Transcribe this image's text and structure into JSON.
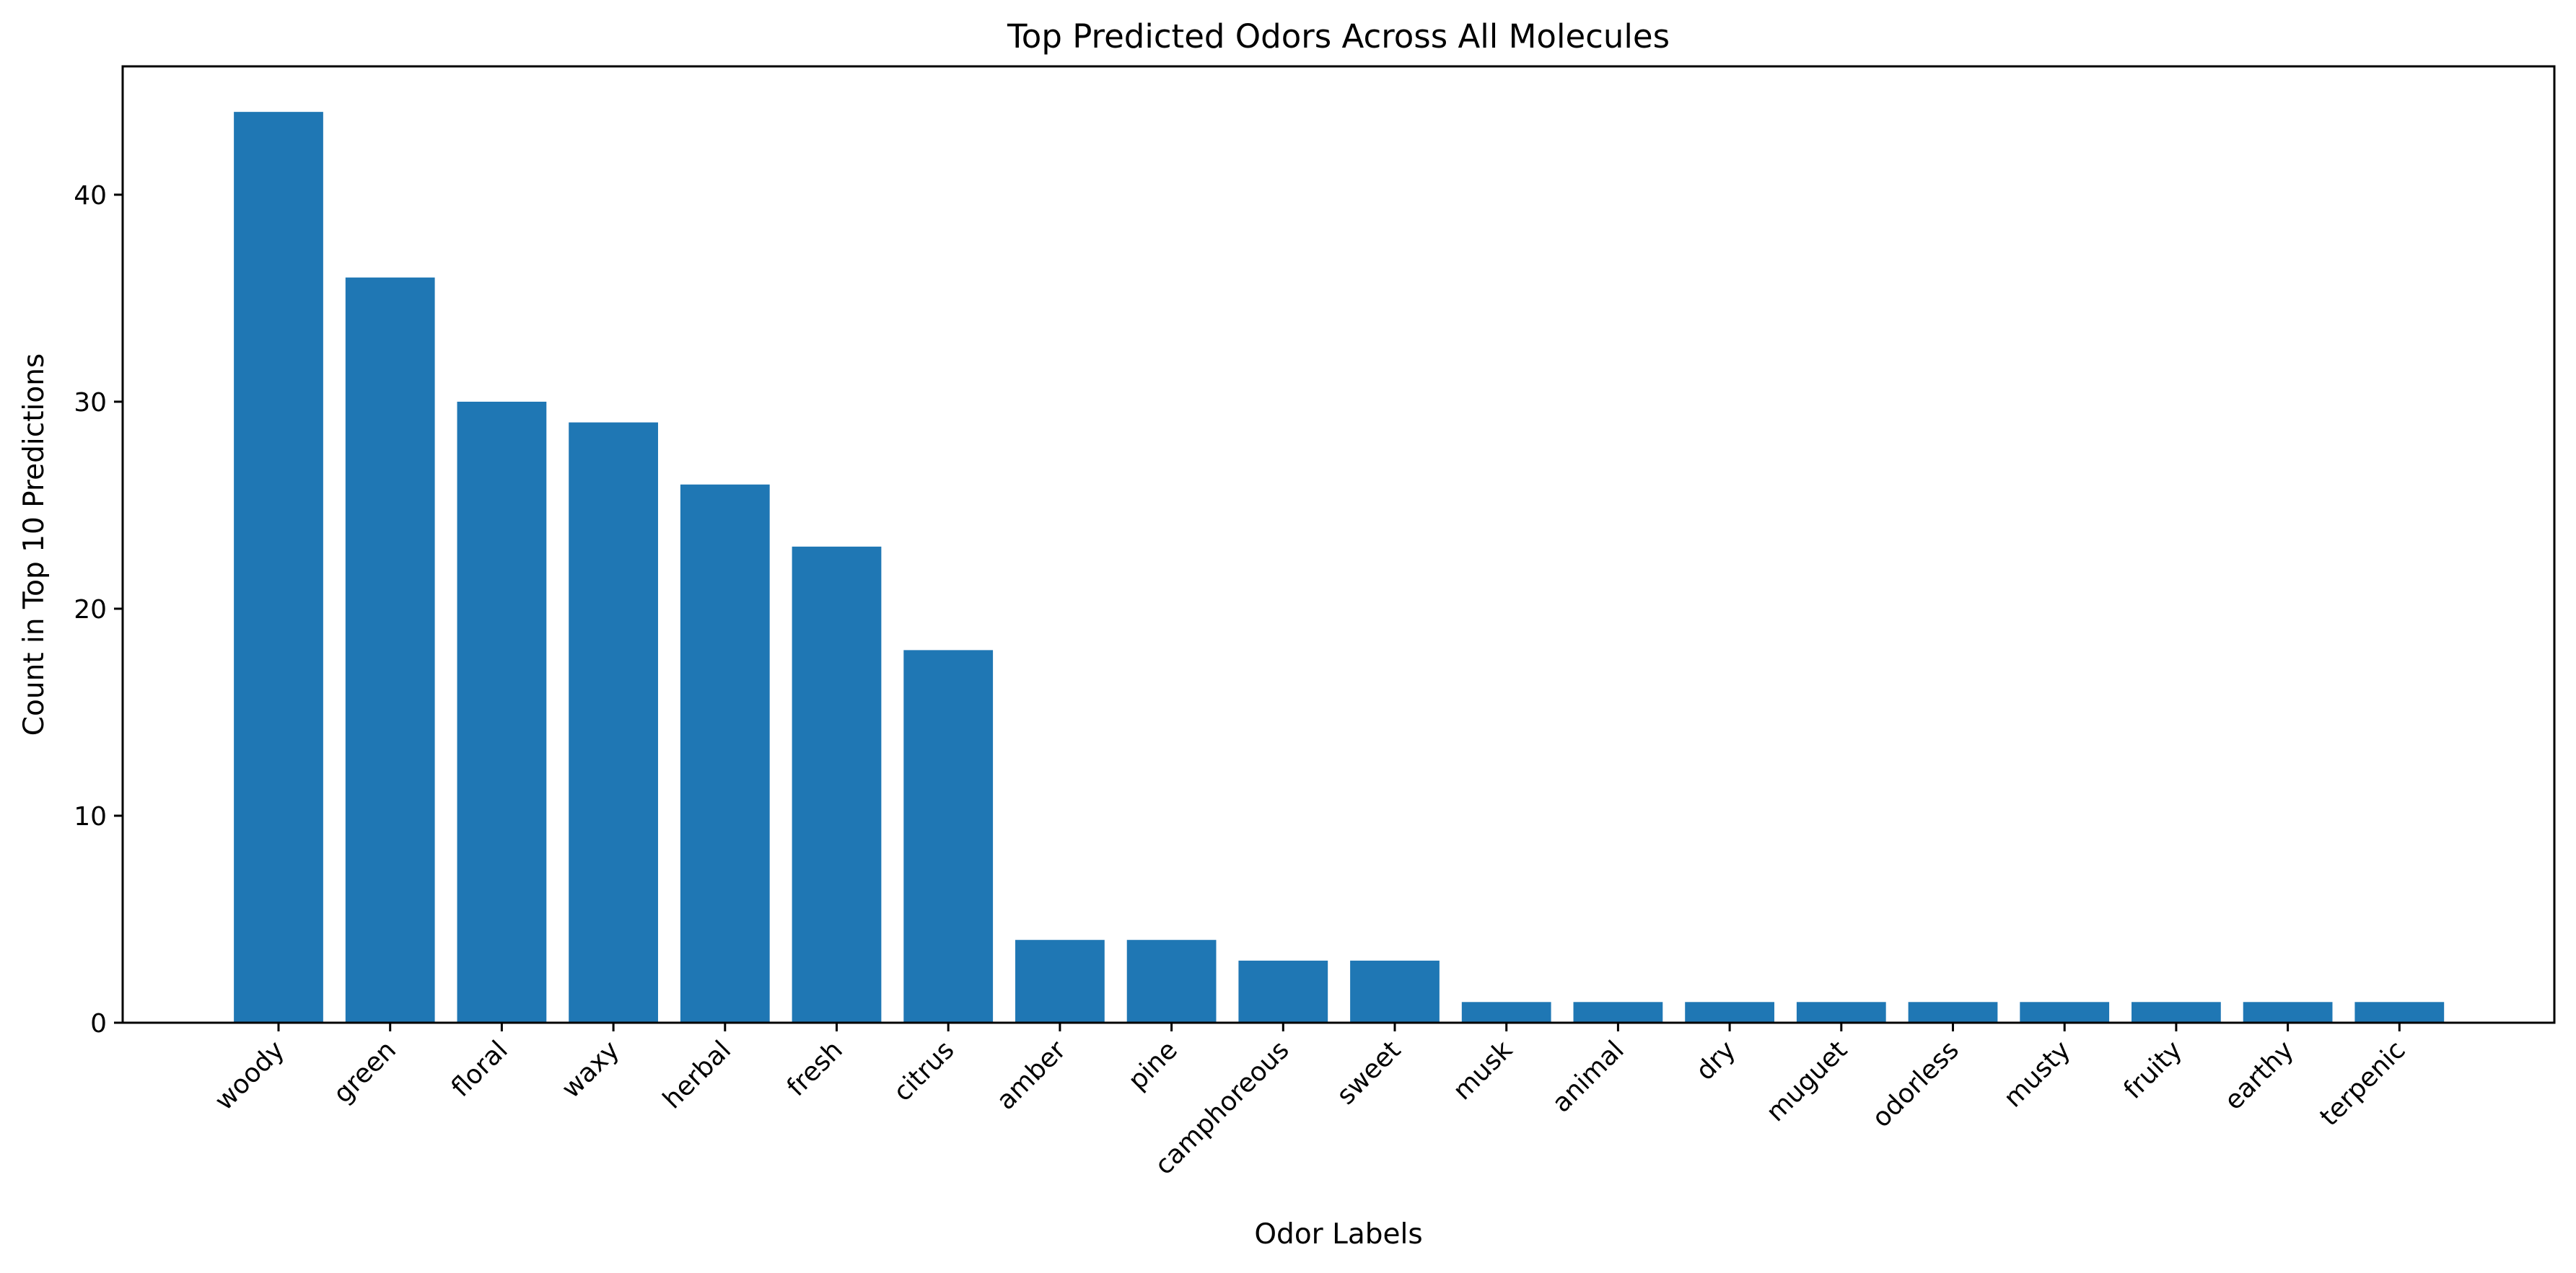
{
  "chart_data": {
    "type": "bar",
    "title": "Top Predicted Odors Across All Molecules",
    "xlabel": "Odor Labels",
    "ylabel": "Count in Top 10 Predictions",
    "categories": [
      "woody",
      "green",
      "floral",
      "waxy",
      "herbal",
      "fresh",
      "citrus",
      "amber",
      "pine",
      "camphoreous",
      "sweet",
      "musk",
      "animal",
      "dry",
      "muguet",
      "odorless",
      "musty",
      "fruity",
      "earthy",
      "terpenic"
    ],
    "values": [
      44,
      36,
      30,
      29,
      26,
      23,
      18,
      4,
      4,
      3,
      3,
      1,
      1,
      1,
      1,
      1,
      1,
      1,
      1,
      1
    ],
    "ylim": [
      0,
      46.2
    ],
    "yticks": [
      0,
      10,
      20,
      30,
      40
    ],
    "grid": false,
    "bar_color": "#1f77b4"
  }
}
